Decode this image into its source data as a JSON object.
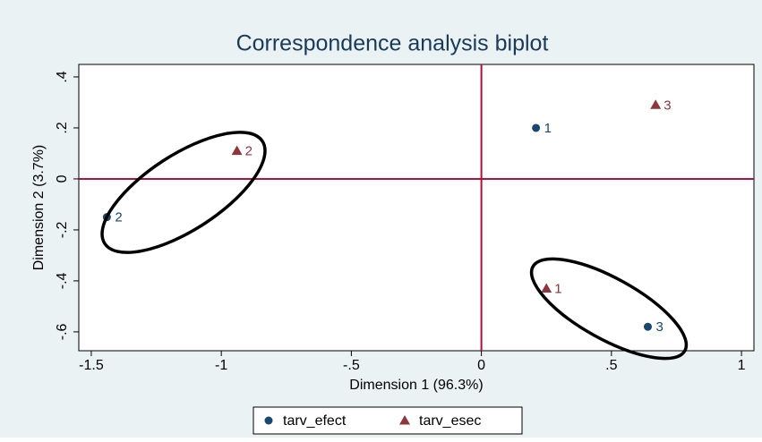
{
  "chart_data": {
    "type": "scatter",
    "title": "Correspondence analysis biplot",
    "xlabel": "Dimension 1 (96.3%)",
    "ylabel": "Dimension 2  (3.7%)",
    "xlim": [
      -1.548,
      1.048
    ],
    "ylim": [
      -0.674,
      0.449
    ],
    "xticks": [
      -1.5,
      -1,
      {
        "value": -0.5,
        "label": "-.5"
      },
      0,
      {
        "value": 0.5,
        "label": ".5"
      },
      1
    ],
    "yticks": [
      {
        "value": 0.4,
        "label": ".4"
      },
      {
        "value": 0.2,
        "label": ".2"
      },
      0,
      {
        "value": -0.2,
        "label": "-.2"
      },
      {
        "value": -0.4,
        "label": "-.4"
      },
      {
        "value": -0.6,
        "label": "-.6"
      }
    ],
    "reference_color": "#b0103a",
    "series": [
      {
        "name": "tarv_efect",
        "color": "#1a476f",
        "marker": "circle",
        "labels": [
          "1",
          "2",
          "3"
        ],
        "x": [
          0.21,
          -1.44,
          0.64
        ],
        "values": [
          0.2,
          -0.15,
          -0.58
        ]
      },
      {
        "name": "tarv_esec",
        "color": "#90353b",
        "marker": "triangle",
        "labels": [
          "1",
          "2",
          "3"
        ],
        "x": [
          0.25,
          -0.94,
          0.67
        ],
        "values": [
          -0.43,
          0.11,
          0.29
        ]
      }
    ]
  }
}
